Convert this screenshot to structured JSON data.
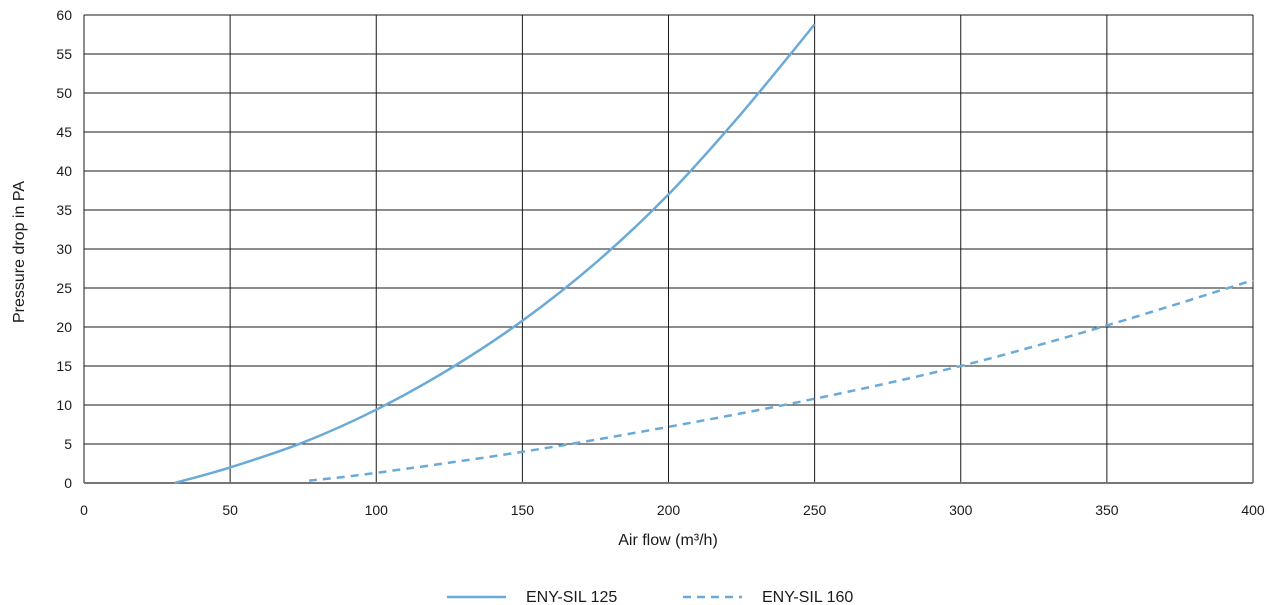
{
  "chart_data": {
    "type": "line",
    "xlabel": "Air flow (m³/h)",
    "ylabel": "Pressure drop in PA",
    "xlim": [
      0,
      400
    ],
    "ylim": [
      0,
      60
    ],
    "xticks": [
      0,
      50,
      100,
      150,
      200,
      250,
      300,
      350,
      400
    ],
    "yticks": [
      0,
      5,
      10,
      15,
      20,
      25,
      30,
      35,
      40,
      45,
      50,
      55,
      60
    ],
    "grid": true,
    "legend_position": "bottom-center",
    "series": [
      {
        "name": "ENY-SIL 125",
        "style": "solid",
        "color": "#6aaad8",
        "x": [
          31,
          50,
          75,
          100,
          125,
          150,
          175,
          200,
          225,
          250
        ],
        "y": [
          0,
          2,
          5.2,
          9.4,
          14.6,
          20.8,
          28.2,
          37,
          47.4,
          58.8
        ]
      },
      {
        "name": "ENY-SIL 160",
        "style": "dashed",
        "color": "#6aaad8",
        "x": [
          77,
          100,
          150,
          200,
          250,
          300,
          350,
          400
        ],
        "y": [
          0.3,
          1.3,
          4,
          7.2,
          10.8,
          15,
          20.2,
          26
        ]
      }
    ]
  }
}
